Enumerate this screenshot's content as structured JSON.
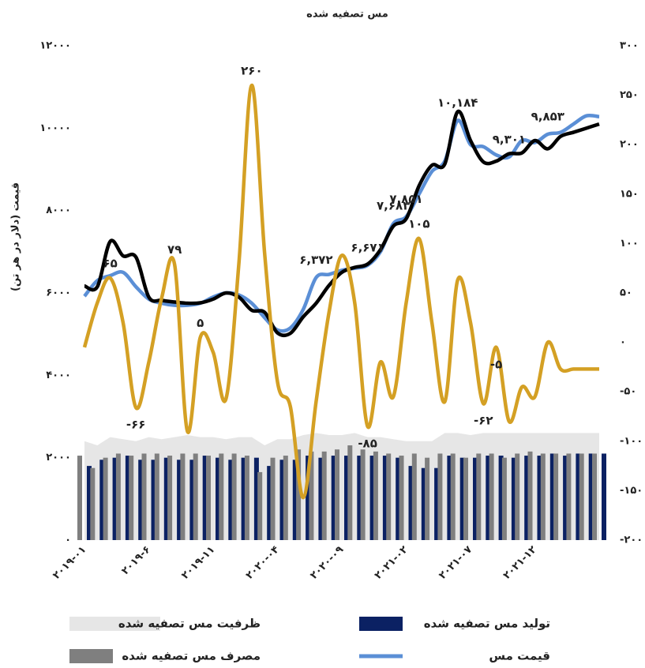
{
  "chart_data": {
    "type": "combo",
    "title": "مس تصفیه شده",
    "y_label": "قیمت (دلار در هر تن)",
    "categories": [
      "۲۰۱۹-۰۱",
      null,
      null,
      null,
      null,
      "۲۰۱۹-۶",
      null,
      null,
      null,
      null,
      "۲۰۱۹-۱۱",
      null,
      null,
      null,
      null,
      "۲۰۲۰-۰۴",
      null,
      null,
      null,
      null,
      "۲۰۲۰-۰۹",
      null,
      null,
      null,
      null,
      "۲۰۲۱-۰۲",
      null,
      null,
      null,
      null,
      "۲۰۲۱-۰۷",
      null,
      null,
      null,
      null,
      "۲۰۲۱-۱۲",
      null,
      null,
      null,
      null,
      null
    ],
    "ylim": [
      0,
      12000
    ],
    "yticks": [
      {
        "value": 0,
        "label": "۰"
      },
      {
        "value": 2000,
        "label": "۲۰۰۰"
      },
      {
        "value": 4000,
        "label": "۴۰۰۰"
      },
      {
        "value": 6000,
        "label": "۶۰۰۰"
      },
      {
        "value": 8000,
        "label": "۸۰۰۰"
      },
      {
        "value": 10000,
        "label": "۱۰۰۰۰"
      },
      {
        "value": 12000,
        "label": "۱۲۰۰۰"
      }
    ],
    "y2lim": [
      -200,
      300
    ],
    "y2ticks": [
      {
        "value": -200,
        "label": "-۲۰۰"
      },
      {
        "value": -150,
        "label": "-۱۵۰"
      },
      {
        "value": -100,
        "label": "-۱۰۰"
      },
      {
        "value": -50,
        "label": "-۵۰"
      },
      {
        "value": 0,
        "label": "۰"
      },
      {
        "value": 50,
        "label": "۵۰"
      },
      {
        "value": 100,
        "label": "۱۰۰"
      },
      {
        "value": 150,
        "label": "۱۵۰"
      },
      {
        "value": 200,
        "label": "۲۰۰"
      },
      {
        "value": 250,
        "label": "۲۵۰"
      },
      {
        "value": 300,
        "label": "۳۰۰"
      }
    ],
    "series": [
      {
        "name": "ظرفیت مس تصفیه شده",
        "type": "area",
        "color": "#e6e6e6",
        "values": [
          2400,
          2300,
          2500,
          2450,
          2400,
          2500,
          2450,
          2500,
          2550,
          2500,
          2500,
          2450,
          2500,
          2500,
          2300,
          2450,
          2450,
          2550,
          2600,
          2550,
          2550,
          2600,
          2500,
          2500,
          2450,
          2400,
          2400,
          2400,
          2600,
          2600,
          2550,
          2600,
          2600,
          2600,
          2600,
          2600,
          2600,
          2600,
          2600,
          2600,
          2600
        ]
      },
      {
        "name": "تولید مس تصفیه شده",
        "type": "bar",
        "color": "#0b2163",
        "values": [
          1800,
          1950,
          2000,
          2050,
          1950,
          1950,
          2000,
          1950,
          1950,
          2050,
          2000,
          1950,
          2000,
          2000,
          1800,
          1950,
          1950,
          2050,
          2000,
          2050,
          2050,
          2050,
          2050,
          2050,
          2000,
          1800,
          1750,
          1750,
          2050,
          2000,
          2000,
          2050,
          2050,
          2000,
          2050,
          2050,
          2100,
          2050,
          2100,
          2100,
          2100
        ]
      },
      {
        "name": "مصرف مس تصفیه شده",
        "type": "bar",
        "color": "#7f7f7f",
        "values": [
          2050,
          1750,
          2000,
          2100,
          2050,
          2100,
          2100,
          2050,
          2100,
          2100,
          2050,
          2100,
          2100,
          2050,
          1650,
          2000,
          2050,
          2200,
          2150,
          2150,
          2200,
          2300,
          2200,
          2150,
          2100,
          2050,
          2100,
          2000,
          2100,
          2100,
          2000,
          2100,
          2100,
          2000,
          2100,
          2150,
          2100,
          2100,
          2100,
          2100,
          2100
        ]
      },
      {
        "name": "قیمت مس",
        "type": "line",
        "color": "#5b8fd6",
        "values": [
          5920,
          6300,
          6420,
          6500,
          6150,
          5850,
          5750,
          5700,
          5700,
          5750,
          5900,
          6000,
          5950,
          5750,
          5400,
          5100,
          5150,
          5600,
          6372,
          6450,
          6550,
          6600,
          6671,
          7000,
          7683,
          7851,
          8400,
          8950,
          9200,
          10184,
          9600,
          9550,
          9350,
          9301,
          9700,
          9650,
          9853,
          9900,
          10100,
          10300,
          10280
        ],
        "value_labels": [
          null,
          null,
          null,
          null,
          null,
          null,
          null,
          null,
          null,
          null,
          null,
          null,
          null,
          null,
          null,
          null,
          null,
          null,
          "۶,۳۷۲",
          null,
          null,
          null,
          "۶,۶۷۱",
          null,
          "۷,۶۸۳",
          "۷,۸۵۱",
          null,
          null,
          null,
          "۱۰,۱۸۴",
          null,
          null,
          null,
          "۹,۳۰۱",
          null,
          null,
          "۹,۸۵۳",
          null,
          null,
          null,
          null
        ]
      },
      {
        "type": "line",
        "color": "#000000",
        "values": [
          6170,
          6150,
          7250,
          6900,
          6870,
          5900,
          5820,
          5780,
          5750,
          5760,
          5850,
          6000,
          5900,
          5580,
          5530,
          5030,
          5020,
          5420,
          5750,
          6180,
          6500,
          6620,
          6700,
          7050,
          7620,
          7800,
          8600,
          9100,
          9130,
          10400,
          9700,
          9180,
          9200,
          9380,
          9400,
          9700,
          9500,
          9800,
          9900,
          10000,
          10100
        ]
      },
      {
        "type": "line",
        "color": "#d4a024",
        "axis": "y2",
        "values": [
          -5,
          40,
          65,
          20,
          -66,
          -20,
          45,
          79,
          -90,
          5,
          -10,
          -57,
          80,
          260,
          90,
          -40,
          -65,
          -157,
          -60,
          30,
          88,
          40,
          -85,
          -20,
          -55,
          40,
          105,
          20,
          -60,
          63,
          20,
          -62,
          -5,
          -80,
          -45,
          -55,
          0,
          -27,
          -27,
          -27,
          -27
        ],
        "value_labels": [
          null,
          null,
          "۶۵",
          null,
          "-۶۶",
          null,
          null,
          "۷۹",
          null,
          "۵",
          null,
          null,
          null,
          "۲۶۰",
          null,
          null,
          null,
          null,
          null,
          null,
          null,
          null,
          "-۸۵",
          null,
          null,
          null,
          "۱۰۵",
          null,
          null,
          null,
          null,
          "-۶۲",
          "-۵",
          null,
          null,
          null,
          null,
          null,
          null,
          null,
          null
        ]
      }
    ]
  }
}
